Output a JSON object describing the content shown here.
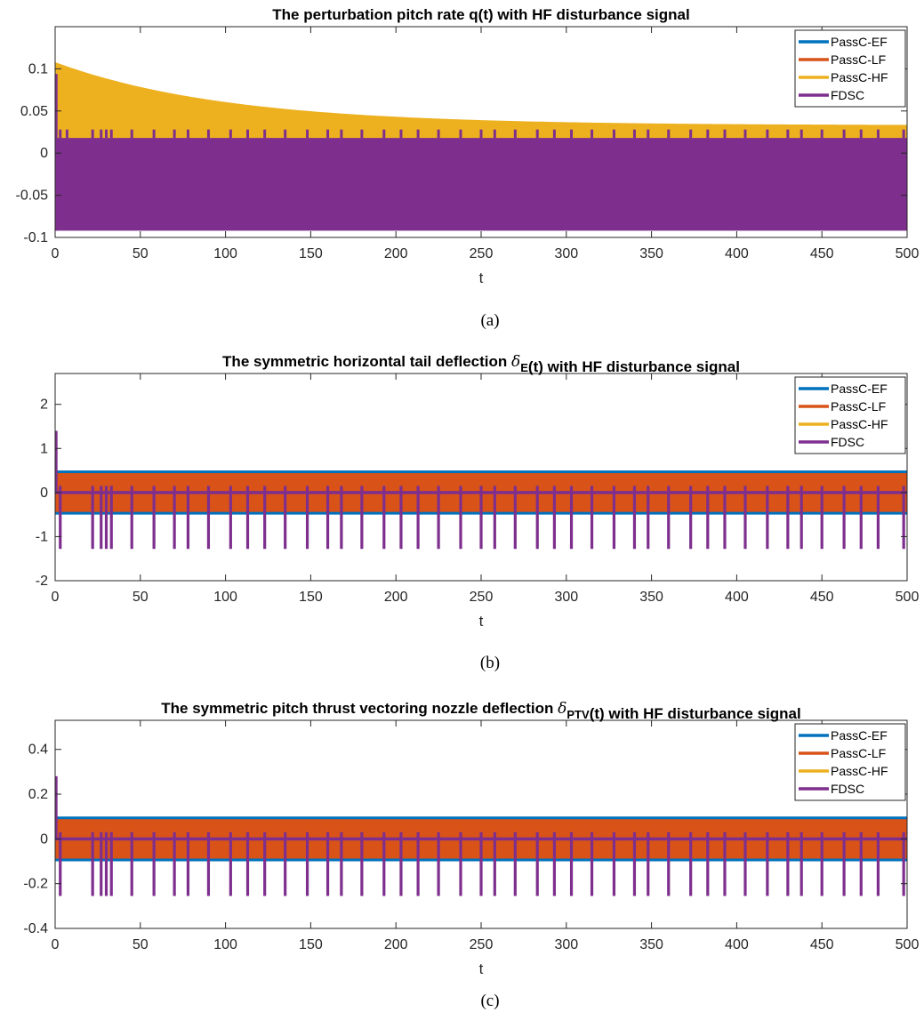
{
  "colors": {
    "PassC-EF": "#0072BD",
    "PassC-LF": "#D95319",
    "PassC-HF": "#EDB120",
    "FDSC": "#7E2F8E"
  },
  "chart_data": [
    {
      "type": "line",
      "caption": "(a)",
      "title_parts": [
        {
          "text": "The perturbation pitch rate q(t) with HF disturbance signal",
          "style": "normal"
        }
      ],
      "xlabel": "t",
      "ylabel": "",
      "xlim": [
        0,
        500
      ],
      "ylim": [
        -0.1,
        0.15
      ],
      "xticks": [
        "0",
        "50",
        "100",
        "150",
        "200",
        "250",
        "300",
        "350",
        "400",
        "450",
        "500"
      ],
      "yticks": [
        {
          "value": -0.1,
          "label": "-0.1"
        },
        {
          "value": -0.05,
          "label": "-0.05"
        },
        {
          "value": 0,
          "label": "0"
        },
        {
          "value": 0.05,
          "label": "0.05"
        },
        {
          "value": 0.1,
          "label": "0.1"
        }
      ],
      "legend": [
        "PassC-EF",
        "PassC-LF",
        "PassC-HF",
        "FDSC"
      ],
      "legend_position": "top-right",
      "series": [
        {
          "name": "PassC-HF",
          "kind": "decaying_envelope",
          "lower": -0.08,
          "upper_start": 0.108,
          "upper_end": 0.033,
          "tau": 100
        },
        {
          "name": "FDSC",
          "kind": "band",
          "lower": -0.092,
          "upper": 0.018,
          "initial_peak": 0.094,
          "spikes_up_to": 0.028,
          "spike_t": [
            3,
            7,
            22,
            27,
            30,
            33,
            45,
            58,
            70,
            78,
            90,
            103,
            113,
            123,
            135,
            148,
            160,
            168,
            180,
            193,
            203,
            213,
            225,
            238,
            250,
            258,
            270,
            283,
            293,
            303,
            315,
            328,
            340,
            348,
            360,
            373,
            383,
            393,
            405,
            418,
            430,
            438,
            450,
            463,
            473,
            483,
            498
          ]
        }
      ]
    },
    {
      "type": "line",
      "caption": "(b)",
      "title_parts": [
        {
          "text": "The symmetric horizontal tail deflection ",
          "style": "normal"
        },
        {
          "text": "δ",
          "style": "italic"
        },
        {
          "text": "E",
          "style": "sub"
        },
        {
          "text": "(t) with HF disturbance signal",
          "style": "normal"
        }
      ],
      "xlabel": "t",
      "ylabel": "",
      "xlim": [
        0,
        500
      ],
      "ylim": [
        -2,
        2.7
      ],
      "xticks": [
        "0",
        "50",
        "100",
        "150",
        "200",
        "250",
        "300",
        "350",
        "400",
        "450",
        "500"
      ],
      "yticks": [
        {
          "value": -2,
          "label": "-2"
        },
        {
          "value": -1,
          "label": "-1"
        },
        {
          "value": 0,
          "label": "0"
        },
        {
          "value": 1,
          "label": "1"
        },
        {
          "value": 2,
          "label": "2"
        }
      ],
      "legend": [
        "PassC-EF",
        "PassC-LF",
        "PassC-HF",
        "FDSC"
      ],
      "legend_position": "top-right",
      "series": [
        {
          "name": "PassC-EF",
          "kind": "band",
          "lower": -0.5,
          "upper": 0.5
        },
        {
          "name": "PassC-LF",
          "kind": "band",
          "lower": -0.44,
          "upper": 0.44
        },
        {
          "name": "FDSC",
          "kind": "baseline_spikes",
          "baseline": 0,
          "initial_peak": 1.4,
          "spike_low": -1.28,
          "spike_high": 0.15,
          "spike_t": [
            3,
            22,
            27,
            30,
            33,
            45,
            58,
            70,
            78,
            90,
            103,
            113,
            123,
            135,
            148,
            160,
            168,
            180,
            193,
            203,
            213,
            225,
            238,
            250,
            258,
            270,
            283,
            293,
            303,
            315,
            328,
            340,
            348,
            360,
            373,
            383,
            393,
            405,
            418,
            430,
            438,
            450,
            463,
            473,
            483,
            498
          ]
        }
      ]
    },
    {
      "type": "line",
      "caption": "(c)",
      "title_parts": [
        {
          "text": "The symmetric pitch thrust vectoring nozzle deflection ",
          "style": "normal"
        },
        {
          "text": "δ",
          "style": "italic"
        },
        {
          "text": "PTV",
          "style": "sub"
        },
        {
          "text": "(t) with HF disturbance signal",
          "style": "normal"
        }
      ],
      "xlabel": "t",
      "ylabel": "",
      "xlim": [
        0,
        500
      ],
      "ylim": [
        -0.4,
        0.53
      ],
      "xticks": [
        "0",
        "50",
        "100",
        "150",
        "200",
        "250",
        "300",
        "350",
        "400",
        "450",
        "500"
      ],
      "yticks": [
        {
          "value": -0.4,
          "label": "-0.4"
        },
        {
          "value": -0.2,
          "label": "-0.2"
        },
        {
          "value": 0,
          "label": "0"
        },
        {
          "value": 0.2,
          "label": "0.2"
        },
        {
          "value": 0.4,
          "label": "0.4"
        }
      ],
      "legend": [
        "PassC-EF",
        "PassC-LF",
        "PassC-HF",
        "FDSC"
      ],
      "legend_position": "top-right",
      "series": [
        {
          "name": "PassC-EF",
          "kind": "band",
          "lower": -0.1,
          "upper": 0.1
        },
        {
          "name": "PassC-LF",
          "kind": "band",
          "lower": -0.088,
          "upper": 0.088
        },
        {
          "name": "FDSC",
          "kind": "baseline_spikes",
          "baseline": 0,
          "initial_peak": 0.28,
          "spike_low": -0.255,
          "spike_high": 0.03,
          "spike_t": [
            3,
            22,
            27,
            30,
            33,
            45,
            58,
            70,
            78,
            90,
            103,
            113,
            123,
            135,
            148,
            160,
            168,
            180,
            193,
            203,
            213,
            225,
            238,
            250,
            258,
            270,
            283,
            293,
            303,
            315,
            328,
            340,
            348,
            360,
            373,
            383,
            393,
            405,
            418,
            430,
            438,
            450,
            463,
            473,
            483,
            498
          ]
        }
      ]
    }
  ]
}
